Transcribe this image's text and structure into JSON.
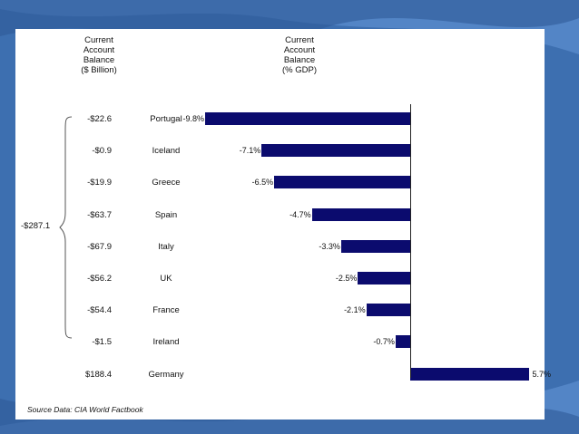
{
  "colors": {
    "bar": "#0b0b6e",
    "background": "#3d6fb0",
    "slide": "#ffffff"
  },
  "headers": {
    "balance": [
      "Current",
      "Account",
      "Balance",
      "($ Billion)"
    ],
    "gdp": [
      "Current",
      "Account",
      "Balance",
      "(% GDP)"
    ]
  },
  "total_label": "-$287.1",
  "source": "Source Data:  CIA World Factbook",
  "chart_data": {
    "type": "bar",
    "orientation": "horizontal",
    "categories": [
      "Portugal",
      "Iceland",
      "Greece",
      "Spain",
      "Italy",
      "UK",
      "France",
      "Ireland",
      "Germany"
    ],
    "balance_labels": [
      "-$22.6",
      "-$0.9",
      "-$19.9",
      "-$63.7",
      "-$67.9",
      "-$56.2",
      "-$54.4",
      "-$1.5",
      "$188.4"
    ],
    "values": [
      -9.8,
      -7.1,
      -6.5,
      -4.7,
      -3.3,
      -2.5,
      -2.1,
      -0.7,
      5.7
    ],
    "value_labels": [
      "-9.8%",
      "-7.1%",
      "-6.5%",
      "-4.7%",
      "-3.3%",
      "-2.5%",
      "-2.1%",
      "-0.7%",
      "5.7%"
    ],
    "xlim": [
      -9.8,
      5.7
    ]
  }
}
